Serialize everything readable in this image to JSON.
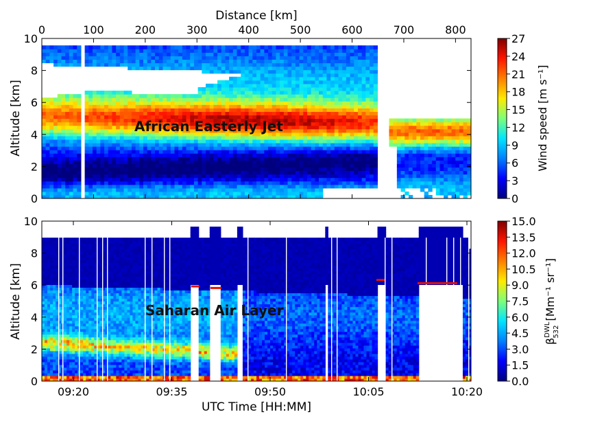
{
  "figure": {
    "top_axis_label": "Distance [km]",
    "bottom_axis_label": "UTC Time [HH:MM]"
  },
  "chart_data": [
    {
      "type": "heatmap",
      "panel": "top",
      "title": "",
      "xlabel": "Distance [km]",
      "ylabel": "Altitude [km]",
      "x_ticks": [
        "0",
        "100",
        "200",
        "300",
        "400",
        "500",
        "600",
        "700",
        "800"
      ],
      "y_ticks": [
        "0",
        "2",
        "4",
        "6",
        "8",
        "10"
      ],
      "xlim": [
        0,
        830
      ],
      "ylim": [
        0,
        10
      ],
      "annotation": "African Easterly Jet",
      "annotation_position": "center-left",
      "colorbar": {
        "label": "Wind speed [m s⁻¹]",
        "min": 0,
        "max": 27,
        "ticks": [
          "0",
          "3",
          "6",
          "9",
          "12",
          "15",
          "18",
          "21",
          "24",
          "27"
        ],
        "colormap": "jet"
      },
      "features": {
        "jet_core_altitude_km": [
          4.3,
          5.2
        ],
        "jet_core_speed_ms": [
          24,
          27
        ],
        "low_level_minimum_altitude_km": [
          1,
          2.5
        ],
        "data_gaps_distance_km": [
          [
            75,
            80
          ],
          [
            650,
            670
          ]
        ]
      }
    },
    {
      "type": "heatmap",
      "panel": "bottom",
      "title": "",
      "xlabel": "UTC Time [HH:MM]",
      "ylabel": "Altitude [km]",
      "x_ticks": [
        "09:20",
        "09:35",
        "09:50",
        "10:05",
        "10:20"
      ],
      "y_ticks": [
        "0",
        "2",
        "4",
        "6",
        "8",
        "10"
      ],
      "ylim": [
        0,
        10
      ],
      "annotation": "Saharan Air Layer",
      "annotation_position": "center-left",
      "colorbar": {
        "label_main": "β",
        "label_sup": "DWL",
        "label_sub": "532",
        "label_units": "[Mm⁻¹ sr⁻¹]",
        "min": 0,
        "max": 15,
        "ticks": [
          "0.0",
          "1.5",
          "3.0",
          "4.5",
          "6.0",
          "7.5",
          "9.0",
          "10.5",
          "12.0",
          "13.5",
          "15.0"
        ],
        "colormap": "jet"
      },
      "features": {
        "aerosol_layer_top_km": 6,
        "enhanced_layer_altitude_km": [
          1.5,
          3.5
        ],
        "surface_return_km": [
          0,
          0.5
        ]
      }
    }
  ],
  "colors": {
    "jet_stops": [
      "#00007f",
      "#0000ff",
      "#0080ff",
      "#00e5ff",
      "#7dff7a",
      "#ffea00",
      "#ff7f00",
      "#ff1400",
      "#7f0000"
    ]
  }
}
